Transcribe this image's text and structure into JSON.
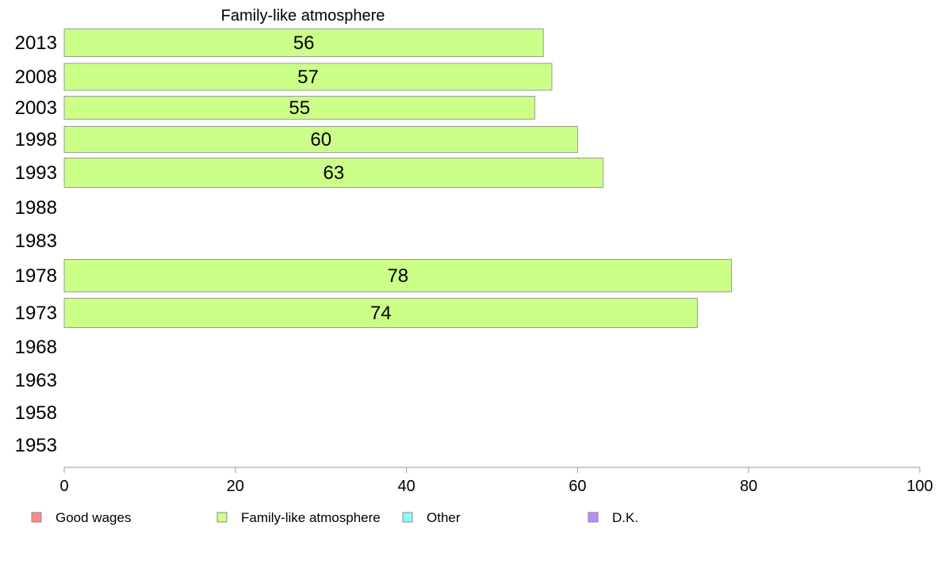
{
  "chart_data": {
    "type": "bar",
    "orientation": "horizontal",
    "title": "Family-like atmosphere",
    "categories": [
      "2013",
      "2008",
      "2003",
      "1998",
      "1993",
      "1988",
      "1983",
      "1978",
      "1973",
      "1968",
      "1963",
      "1958",
      "1953"
    ],
    "series": [
      {
        "name": "Family-like atmosphere",
        "values": [
          56,
          57,
          55,
          60,
          63,
          null,
          null,
          78,
          74,
          null,
          null,
          null,
          null
        ],
        "color": "#ccff88"
      }
    ],
    "xlim": [
      0,
      100
    ],
    "xticks": [
      0,
      20,
      40,
      60,
      80,
      100
    ],
    "xlabel": "",
    "ylabel": "",
    "grid": false,
    "legend_position": "bottom",
    "legend": [
      {
        "label": "Good wages",
        "color": "#ff8888"
      },
      {
        "label": "Family-like atmosphere",
        "color": "#ccff88"
      },
      {
        "label": "Other",
        "color": "#88ffff"
      },
      {
        "label": "D.K.",
        "color": "#bb88ff"
      }
    ],
    "bar_border_color": "#9a9a9a",
    "axis_color": "#999999"
  }
}
